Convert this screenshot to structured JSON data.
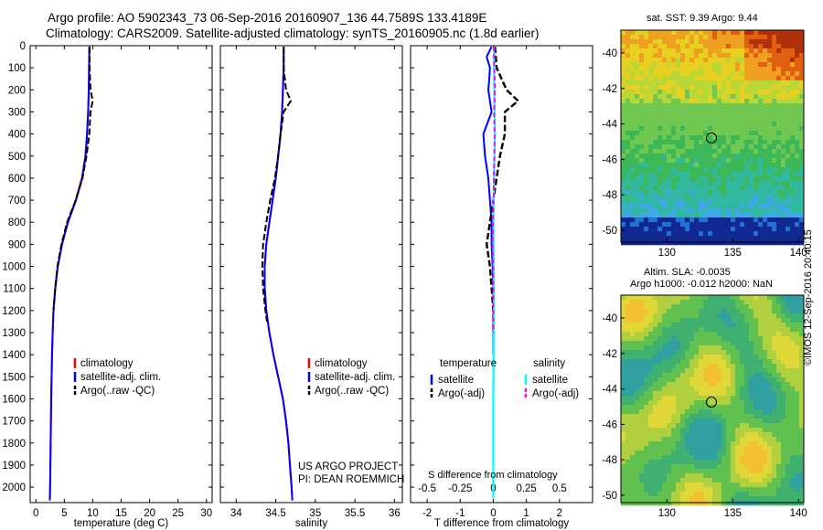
{
  "header": {
    "title_line1": "Argo profile: AO 5902343_73 06-Sep-2016 20160907_136 44.7589S 133.4189E",
    "title_line2": "Climatology: CARS2009. Satellite-adjusted climatology: synTS_20160905.nc (1.8d earlier)"
  },
  "side_text": {
    "org": "©IMOS",
    "timestamp": "12-Sep-2016 20:40:15"
  },
  "map_top": {
    "title": "sat. SST: 9.39 Argo: 9.44",
    "y_ticks": [
      "-40",
      "-42",
      "-44",
      "-46",
      "-48",
      "-50"
    ],
    "x_ticks": [
      "130",
      "135",
      "140"
    ]
  },
  "map_bottom": {
    "title_line1": "Altim. SLA: -0.0035",
    "title_line2": "Argo h1000: -0.012 h2000: NaN",
    "y_ticks": [
      "-40",
      "-42",
      "-44",
      "-46",
      "-48",
      "-50"
    ],
    "x_ticks": [
      "130",
      "135",
      "140"
    ]
  },
  "panel_annotations": {
    "project_line1": "US ARGO PROJECT",
    "project_line2": "PI: DEAN ROEMMICH",
    "s_diff_label": "S difference from climatology"
  },
  "colors": {
    "climatology": "#ff0000",
    "satellite": "#0000ff",
    "argo": "#000000",
    "salinity_satellite": "#00ffff",
    "salinity_argo": "#ff00ff"
  },
  "chart_data": [
    {
      "type": "line",
      "xlabel": "temperature (deg C)",
      "ylabel": "",
      "xlim": [
        -1,
        31
      ],
      "ylim": [
        2070,
        0
      ],
      "x_ticks": [
        "0",
        "5",
        "10",
        "15",
        "20",
        "25",
        "30"
      ],
      "y_ticks": [
        "0",
        "100",
        "200",
        "300",
        "400",
        "500",
        "600",
        "700",
        "800",
        "900",
        "1000",
        "1100",
        "1200",
        "1300",
        "1400",
        "1500",
        "1600",
        "1700",
        "1800",
        "1900",
        "2000"
      ],
      "legend": [
        "climatology",
        "satellite-adj. clim.",
        "Argo(..raw -QC)"
      ],
      "series": [
        {
          "name": "climatology",
          "depth": [
            5,
            100,
            200,
            300,
            400,
            500,
            600,
            700,
            800,
            900,
            1000,
            1100,
            1200,
            1300,
            1400,
            1600,
            1800,
            2000,
            2060
          ],
          "values": [
            9.4,
            9.35,
            9.3,
            9.2,
            9.0,
            8.7,
            8.1,
            7.0,
            5.6,
            4.6,
            3.85,
            3.4,
            3.1,
            2.95,
            2.85,
            2.7,
            2.6,
            2.5,
            2.45
          ]
        },
        {
          "name": "satellite-adj. clim.",
          "depth": [
            5,
            100,
            200,
            300,
            400,
            500,
            600,
            700,
            800,
            900,
            1000,
            1100,
            1200,
            1300,
            1400,
            1600,
            1800,
            2000,
            2060
          ],
          "values": [
            9.4,
            9.35,
            9.3,
            9.2,
            9.0,
            8.75,
            8.15,
            7.05,
            5.65,
            4.6,
            3.85,
            3.4,
            3.1,
            2.95,
            2.85,
            2.7,
            2.6,
            2.5,
            2.45
          ]
        },
        {
          "name": "Argo(..raw -QC)",
          "depth": [
            5,
            100,
            200,
            250,
            300,
            400,
            500,
            600,
            700,
            800,
            900,
            1000,
            1100,
            1200
          ],
          "values": [
            9.45,
            9.45,
            9.6,
            10.0,
            9.6,
            9.4,
            8.9,
            8.2,
            7.0,
            5.5,
            4.5,
            3.8,
            3.4,
            3.1
          ]
        }
      ]
    },
    {
      "type": "line",
      "xlabel": "salinity",
      "ylabel": "",
      "xlim": [
        33.8,
        36.1
      ],
      "ylim": [
        2070,
        0
      ],
      "x_ticks": [
        "34",
        "34.5",
        "35",
        "35.5",
        "36"
      ],
      "legend": [
        "climatology",
        "satellite-adj. clim.",
        "Argo(..raw -QC)"
      ],
      "series": [
        {
          "name": "climatology",
          "depth": [
            5,
            100,
            200,
            300,
            400,
            500,
            600,
            700,
            800,
            900,
            1000,
            1100,
            1200,
            1300,
            1400,
            1500,
            1600,
            1700,
            1800,
            1900,
            2000,
            2060
          ],
          "values": [
            34.6,
            34.6,
            34.59,
            34.58,
            34.56,
            34.53,
            34.5,
            34.46,
            34.42,
            34.38,
            34.36,
            34.36,
            34.38,
            34.42,
            34.47,
            34.53,
            34.59,
            34.63,
            34.66,
            34.68,
            34.7,
            34.71
          ]
        },
        {
          "name": "satellite-adj. clim.",
          "depth": [
            5,
            100,
            200,
            300,
            400,
            500,
            600,
            700,
            800,
            900,
            1000,
            1100,
            1200,
            1300,
            1400,
            1500,
            1600,
            1700,
            1800,
            1900,
            2000,
            2060
          ],
          "values": [
            34.6,
            34.6,
            34.59,
            34.58,
            34.56,
            34.53,
            34.5,
            34.46,
            34.42,
            34.38,
            34.36,
            34.36,
            34.38,
            34.42,
            34.47,
            34.53,
            34.59,
            34.63,
            34.66,
            34.68,
            34.7,
            34.71
          ]
        },
        {
          "name": "Argo(..raw -QC)",
          "depth": [
            5,
            100,
            200,
            250,
            300,
            400,
            500,
            600,
            700,
            800,
            850,
            900,
            1000,
            1100,
            1200,
            1250
          ],
          "values": [
            34.6,
            34.6,
            34.63,
            34.69,
            34.6,
            34.56,
            34.53,
            34.49,
            34.43,
            34.38,
            34.36,
            34.34,
            34.33,
            34.34,
            34.37,
            34.39
          ]
        }
      ]
    },
    {
      "type": "line",
      "xlabel": "T difference from climatology",
      "ylabel": "",
      "xlim": [
        -2.5,
        3
      ],
      "ylim": [
        2070,
        0
      ],
      "x_ticks": [
        "-2",
        "-1",
        "0",
        "1",
        "2"
      ],
      "x_ticks_top": [
        "-0.5",
        "-0.25",
        "0",
        "0.25",
        "0.5"
      ],
      "legend_groups": [
        "temperature",
        "salinity"
      ],
      "legend": [
        "satellite",
        "Argo(-adj)",
        "satellite",
        "Argo(-adj)"
      ],
      "series": [
        {
          "name": "temperature satellite",
          "depth": [
            5,
            50,
            100,
            150,
            200,
            300,
            400,
            500,
            600,
            700,
            800,
            900,
            1000,
            1100,
            1200,
            1300,
            1400
          ],
          "values": [
            -0.05,
            -0.2,
            -0.1,
            -0.12,
            -0.15,
            -0.05,
            -0.3,
            -0.25,
            -0.15,
            -0.1,
            -0.05,
            -0.05,
            -0.02,
            0,
            0,
            0,
            0
          ]
        },
        {
          "name": "temperature Argo(-adj)",
          "depth": [
            5,
            100,
            200,
            250,
            300,
            400,
            500,
            600,
            700,
            800,
            900,
            1000,
            1100,
            1200,
            1300
          ],
          "values": [
            0.05,
            0.1,
            0.4,
            0.75,
            0.35,
            0.35,
            0.2,
            0.1,
            0,
            -0.1,
            -0.2,
            -0.1,
            -0.05,
            0,
            0
          ]
        },
        {
          "name": "salinity satellite",
          "depth": [
            5,
            200,
            400,
            600,
            800,
            1000,
            1200,
            1400,
            1600,
            1800,
            2000,
            2050
          ],
          "values": [
            0.02,
            0.03,
            0.05,
            0.02,
            0.0,
            0.01,
            0.02,
            0.01,
            0.0,
            0.0,
            0.0,
            0.0
          ]
        },
        {
          "name": "salinity Argo(-adj)",
          "depth": [
            5,
            100,
            200,
            300,
            400,
            500,
            600,
            700,
            800,
            900,
            1000,
            1100,
            1200,
            1300
          ],
          "values": [
            0.02,
            0.03,
            0.05,
            0.02,
            0.04,
            0.03,
            0.02,
            0.01,
            -0.01,
            -0.02,
            0,
            0,
            0,
            0
          ]
        }
      ]
    }
  ]
}
